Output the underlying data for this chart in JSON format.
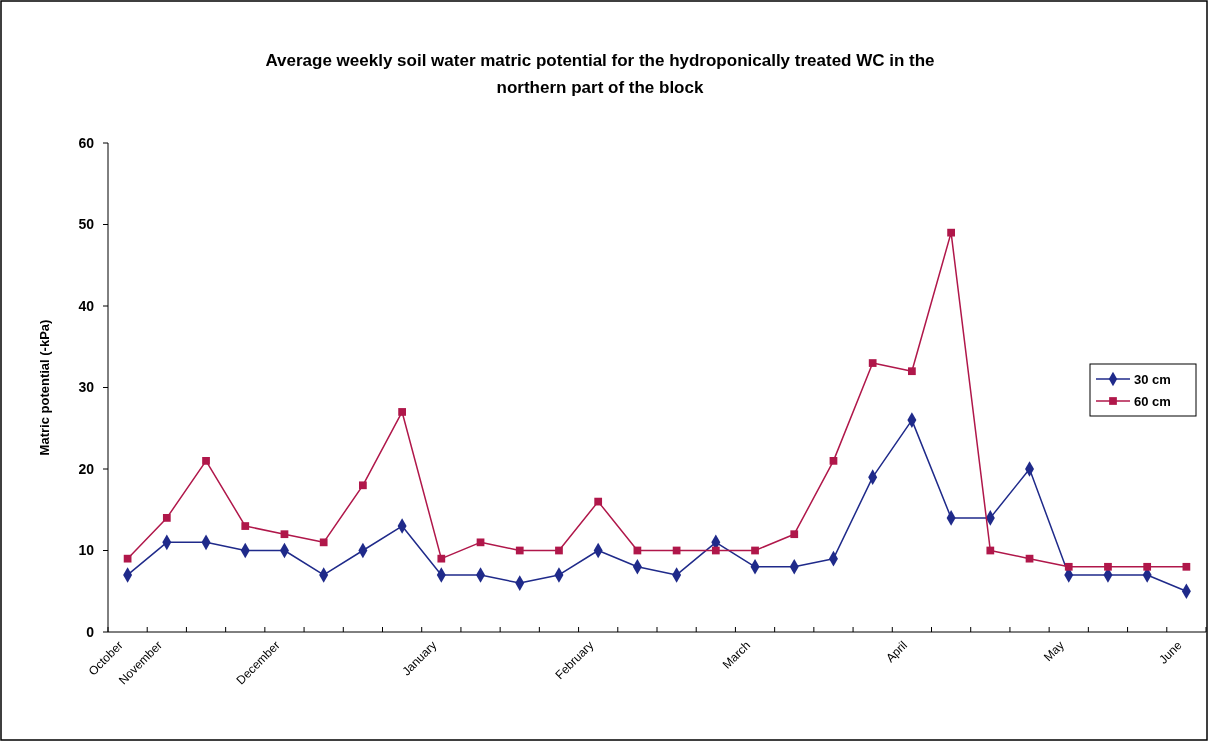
{
  "chart_data": {
    "type": "line",
    "title": "Average weekly soil water matric potential for the hydroponically treated WC in the northern part of the block",
    "ylabel": "Matric potential (-kPa)",
    "categories": [
      "October",
      "November",
      null,
      null,
      "December",
      null,
      null,
      null,
      "January",
      null,
      null,
      null,
      "February",
      null,
      null,
      null,
      "March",
      null,
      null,
      null,
      "April",
      null,
      null,
      null,
      "May",
      null,
      null,
      "June"
    ],
    "series": [
      {
        "name": "30 cm",
        "color": "#1f2a8a",
        "marker": "diamond",
        "values": [
          7,
          11,
          11,
          10,
          10,
          7,
          10,
          13,
          7,
          7,
          6,
          7,
          10,
          8,
          7,
          11,
          8,
          8,
          9,
          19,
          26,
          14,
          14,
          20,
          7,
          7,
          7,
          5
        ]
      },
      {
        "name": "60 cm",
        "color": "#b0174a",
        "marker": "square",
        "values": [
          9,
          14,
          21,
          13,
          12,
          11,
          18,
          27,
          9,
          11,
          10,
          10,
          16,
          10,
          10,
          10,
          10,
          12,
          21,
          33,
          32,
          49,
          10,
          9,
          8,
          8,
          8,
          8
        ]
      }
    ],
    "ylim": [
      0,
      60
    ],
    "yticks": [
      0,
      10,
      20,
      30,
      40,
      50,
      60
    ],
    "grid": false,
    "legend": "right",
    "line_style": "solid"
  }
}
